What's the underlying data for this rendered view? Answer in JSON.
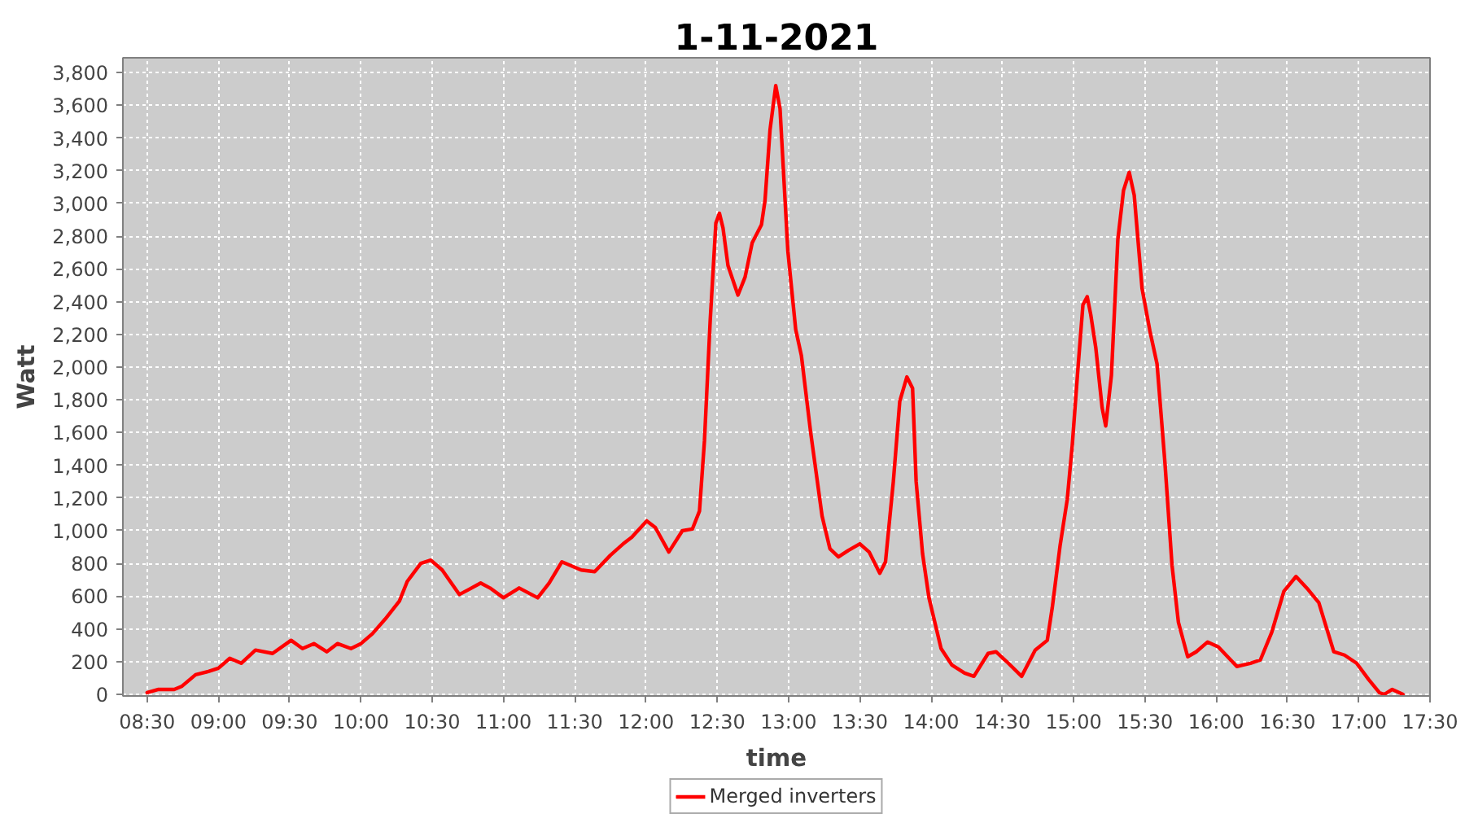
{
  "chart_data": {
    "type": "line",
    "title": "1-11-2021",
    "xlabel": "time",
    "ylabel": "Watt",
    "x": [
      8.5,
      8.58,
      8.69,
      8.745,
      8.84,
      8.93,
      9.0,
      9.08,
      9.16,
      9.26,
      9.38,
      9.51,
      9.59,
      9.67,
      9.76,
      9.835,
      9.93,
      10.0,
      10.08,
      10.17,
      10.27,
      10.325,
      10.42,
      10.49,
      10.57,
      10.69,
      10.755,
      10.84,
      10.905,
      11.0,
      11.11,
      11.24,
      11.32,
      11.41,
      11.545,
      11.64,
      11.75,
      11.84,
      11.9,
      12.005,
      12.065,
      12.16,
      12.255,
      12.325,
      12.375,
      12.41,
      12.45,
      12.49,
      12.515,
      12.54,
      12.575,
      12.645,
      12.695,
      12.745,
      12.81,
      12.835,
      12.87,
      12.91,
      12.94,
      12.995,
      13.05,
      13.09,
      13.155,
      13.235,
      13.29,
      13.35,
      13.42,
      13.5,
      13.565,
      13.64,
      13.68,
      13.735,
      13.78,
      13.83,
      13.87,
      13.895,
      13.94,
      13.985,
      14.07,
      14.145,
      14.235,
      14.3,
      14.4,
      14.455,
      14.53,
      14.635,
      14.73,
      14.815,
      14.85,
      14.905,
      14.955,
      14.99,
      15.03,
      15.065,
      15.095,
      15.12,
      15.155,
      15.2,
      15.225,
      15.265,
      15.31,
      15.35,
      15.39,
      15.425,
      15.48,
      15.535,
      15.585,
      15.64,
      15.69,
      15.735,
      15.8,
      15.86,
      15.94,
      16.015,
      16.145,
      16.24,
      16.31,
      16.39,
      16.475,
      16.56,
      16.645,
      16.72,
      16.825,
      16.9,
      16.985,
      17.07,
      17.145,
      17.18,
      17.235,
      17.31
    ],
    "series": [
      {
        "name": "Merged inverters",
        "color": "#ff0000",
        "values": [
          10,
          30,
          30,
          50,
          120,
          140,
          160,
          220,
          190,
          270,
          250,
          330,
          280,
          310,
          260,
          310,
          280,
          310,
          370,
          460,
          570,
          690,
          800,
          820,
          760,
          610,
          640,
          680,
          650,
          590,
          650,
          590,
          680,
          810,
          760,
          750,
          850,
          920,
          960,
          1060,
          1020,
          870,
          1000,
          1010,
          1120,
          1550,
          2280,
          2880,
          2940,
          2850,
          2620,
          2440,
          2550,
          2760,
          2870,
          3020,
          3450,
          3720,
          3580,
          2710,
          2230,
          2070,
          1600,
          1090,
          890,
          840,
          880,
          920,
          870,
          740,
          810,
          1300,
          1790,
          1940,
          1870,
          1300,
          860,
          590,
          280,
          180,
          130,
          110,
          250,
          260,
          200,
          110,
          270,
          330,
          530,
          910,
          1190,
          1520,
          1990,
          2380,
          2430,
          2320,
          2120,
          1750,
          1640,
          1950,
          2780,
          3080,
          3190,
          3050,
          2480,
          2220,
          2020,
          1420,
          790,
          440,
          230,
          260,
          320,
          290,
          170,
          190,
          210,
          380,
          630,
          720,
          640,
          560,
          260,
          240,
          190,
          90,
          10,
          0,
          30,
          0
        ]
      }
    ],
    "xlim": [
      8.33,
      17.5
    ],
    "ylim": [
      -10,
      3890
    ],
    "xticks": [
      {
        "value": 8.5,
        "label": "08:30"
      },
      {
        "value": 9,
        "label": "09:00"
      },
      {
        "value": 9.5,
        "label": "09:30"
      },
      {
        "value": 10,
        "label": "10:00"
      },
      {
        "value": 10.5,
        "label": "10:30"
      },
      {
        "value": 11,
        "label": "11:00"
      },
      {
        "value": 11.5,
        "label": "11:30"
      },
      {
        "value": 12,
        "label": "12:00"
      },
      {
        "value": 12.5,
        "label": "12:30"
      },
      {
        "value": 13,
        "label": "13:00"
      },
      {
        "value": 13.5,
        "label": "13:30"
      },
      {
        "value": 14,
        "label": "14:00"
      },
      {
        "value": 14.5,
        "label": "14:30"
      },
      {
        "value": 15,
        "label": "15:00"
      },
      {
        "value": 15.5,
        "label": "15:30"
      },
      {
        "value": 16,
        "label": "16:00"
      },
      {
        "value": 16.5,
        "label": "16:30"
      },
      {
        "value": 17,
        "label": "17:00"
      },
      {
        "value": 17.5,
        "label": "17:30"
      }
    ],
    "yticks": [
      0,
      200,
      400,
      600,
      800,
      {
        "value": 1000,
        "label": "1,000"
      },
      {
        "value": 1200,
        "label": "1,200"
      },
      {
        "value": 1400,
        "label": "1,400"
      },
      {
        "value": 1600,
        "label": "1,600"
      },
      {
        "value": 1800,
        "label": "1,800"
      },
      {
        "value": 2000,
        "label": "2,000"
      },
      {
        "value": 2200,
        "label": "2,200"
      },
      {
        "value": 2400,
        "label": "2,400"
      },
      {
        "value": 2600,
        "label": "2,600"
      },
      {
        "value": 2800,
        "label": "2,800"
      },
      {
        "value": 3000,
        "label": "3,000"
      },
      {
        "value": 3200,
        "label": "3,200"
      },
      {
        "value": 3400,
        "label": "3,400"
      },
      {
        "value": 3600,
        "label": "3,600"
      },
      {
        "value": 3800,
        "label": "3,800"
      }
    ],
    "grid": true,
    "legend": "bottom",
    "line_style": "solid"
  }
}
